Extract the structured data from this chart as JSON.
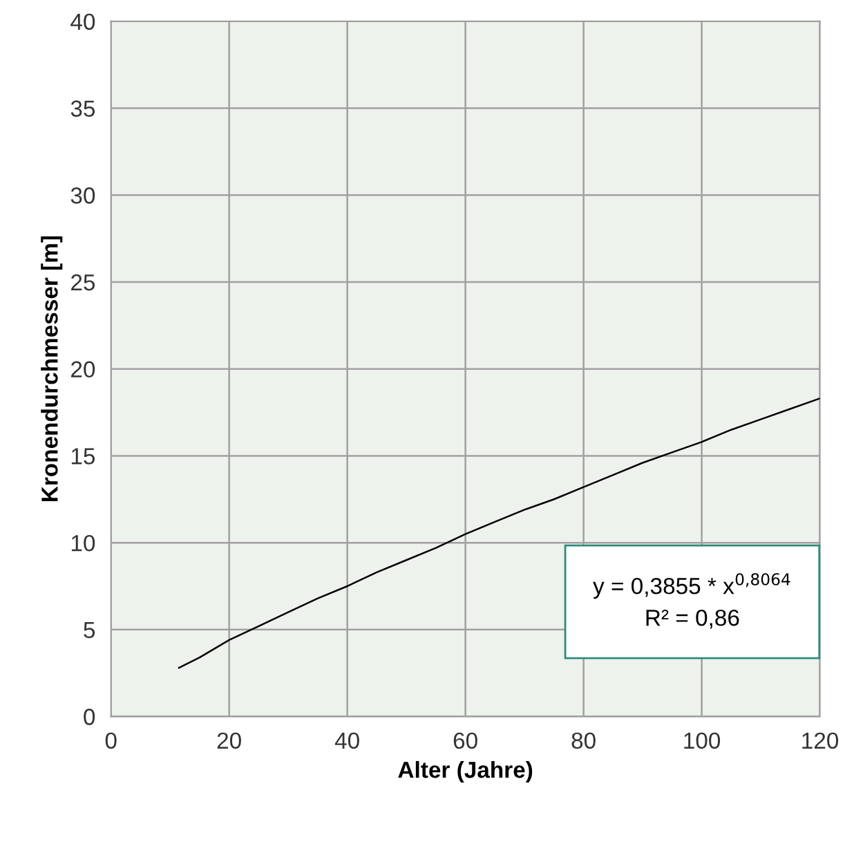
{
  "chart_data": {
    "type": "line",
    "xlabel": "Alter (Jahre)",
    "ylabel": "Kronendurchmesser [m]",
    "x": [
      11.5,
      15,
      20,
      25,
      30,
      35,
      40,
      45,
      50,
      55,
      60,
      65,
      70,
      75,
      80,
      85,
      90,
      95,
      100,
      105,
      110,
      115,
      120
    ],
    "series": [
      {
        "color": "#000000",
        "values": [
          2.8,
          3.4,
          4.4,
          5.2,
          6.0,
          6.8,
          7.5,
          8.3,
          9.0,
          9.7,
          10.5,
          11.2,
          11.9,
          12.5,
          13.2,
          13.9,
          14.6,
          15.2,
          15.8,
          16.5,
          17.1,
          17.7,
          18.3
        ]
      }
    ],
    "xlim": [
      0,
      120
    ],
    "ylim": [
      0,
      40
    ],
    "xticks": [
      0,
      20,
      40,
      60,
      80,
      100,
      120
    ],
    "yticks": [
      0,
      5,
      10,
      15,
      20,
      25,
      30,
      35,
      40
    ],
    "grid": true,
    "marker": "none",
    "line_style": "solid",
    "annotations": [
      "y = 0,3855 * x$^{0,8064}$\nR² = 0,86"
    ]
  }
}
